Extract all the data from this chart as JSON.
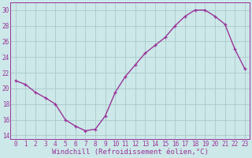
{
  "x": [
    0,
    1,
    2,
    3,
    4,
    5,
    6,
    7,
    8,
    9,
    10,
    11,
    12,
    13,
    14,
    15,
    16,
    17,
    18,
    19,
    20,
    21,
    22,
    23
  ],
  "y": [
    21.0,
    20.5,
    19.5,
    18.8,
    18.0,
    16.0,
    15.2,
    14.6,
    14.8,
    16.5,
    19.5,
    21.5,
    23.0,
    24.5,
    25.5,
    26.5,
    28.0,
    29.2,
    30.0,
    30.0,
    29.2,
    28.2,
    25.0,
    22.5
  ],
  "line_color": "#993399",
  "marker_color": "#993399",
  "bg_color": "#cce8e8",
  "grid_color": "#aacaca",
  "xlabel": "Windchill (Refroidissement éolien,°C)",
  "ylim": [
    13.5,
    31.0
  ],
  "xlim": [
    -0.5,
    23.5
  ],
  "yticks": [
    14,
    16,
    18,
    20,
    22,
    24,
    26,
    28,
    30
  ],
  "xticks": [
    0,
    1,
    2,
    3,
    4,
    5,
    6,
    7,
    8,
    9,
    10,
    11,
    12,
    13,
    14,
    15,
    16,
    17,
    18,
    19,
    20,
    21,
    22,
    23
  ],
  "tick_color": "#993399",
  "label_fontsize": 6.5,
  "tick_fontsize": 5.5,
  "linewidth": 1.0,
  "markersize": 2.5
}
